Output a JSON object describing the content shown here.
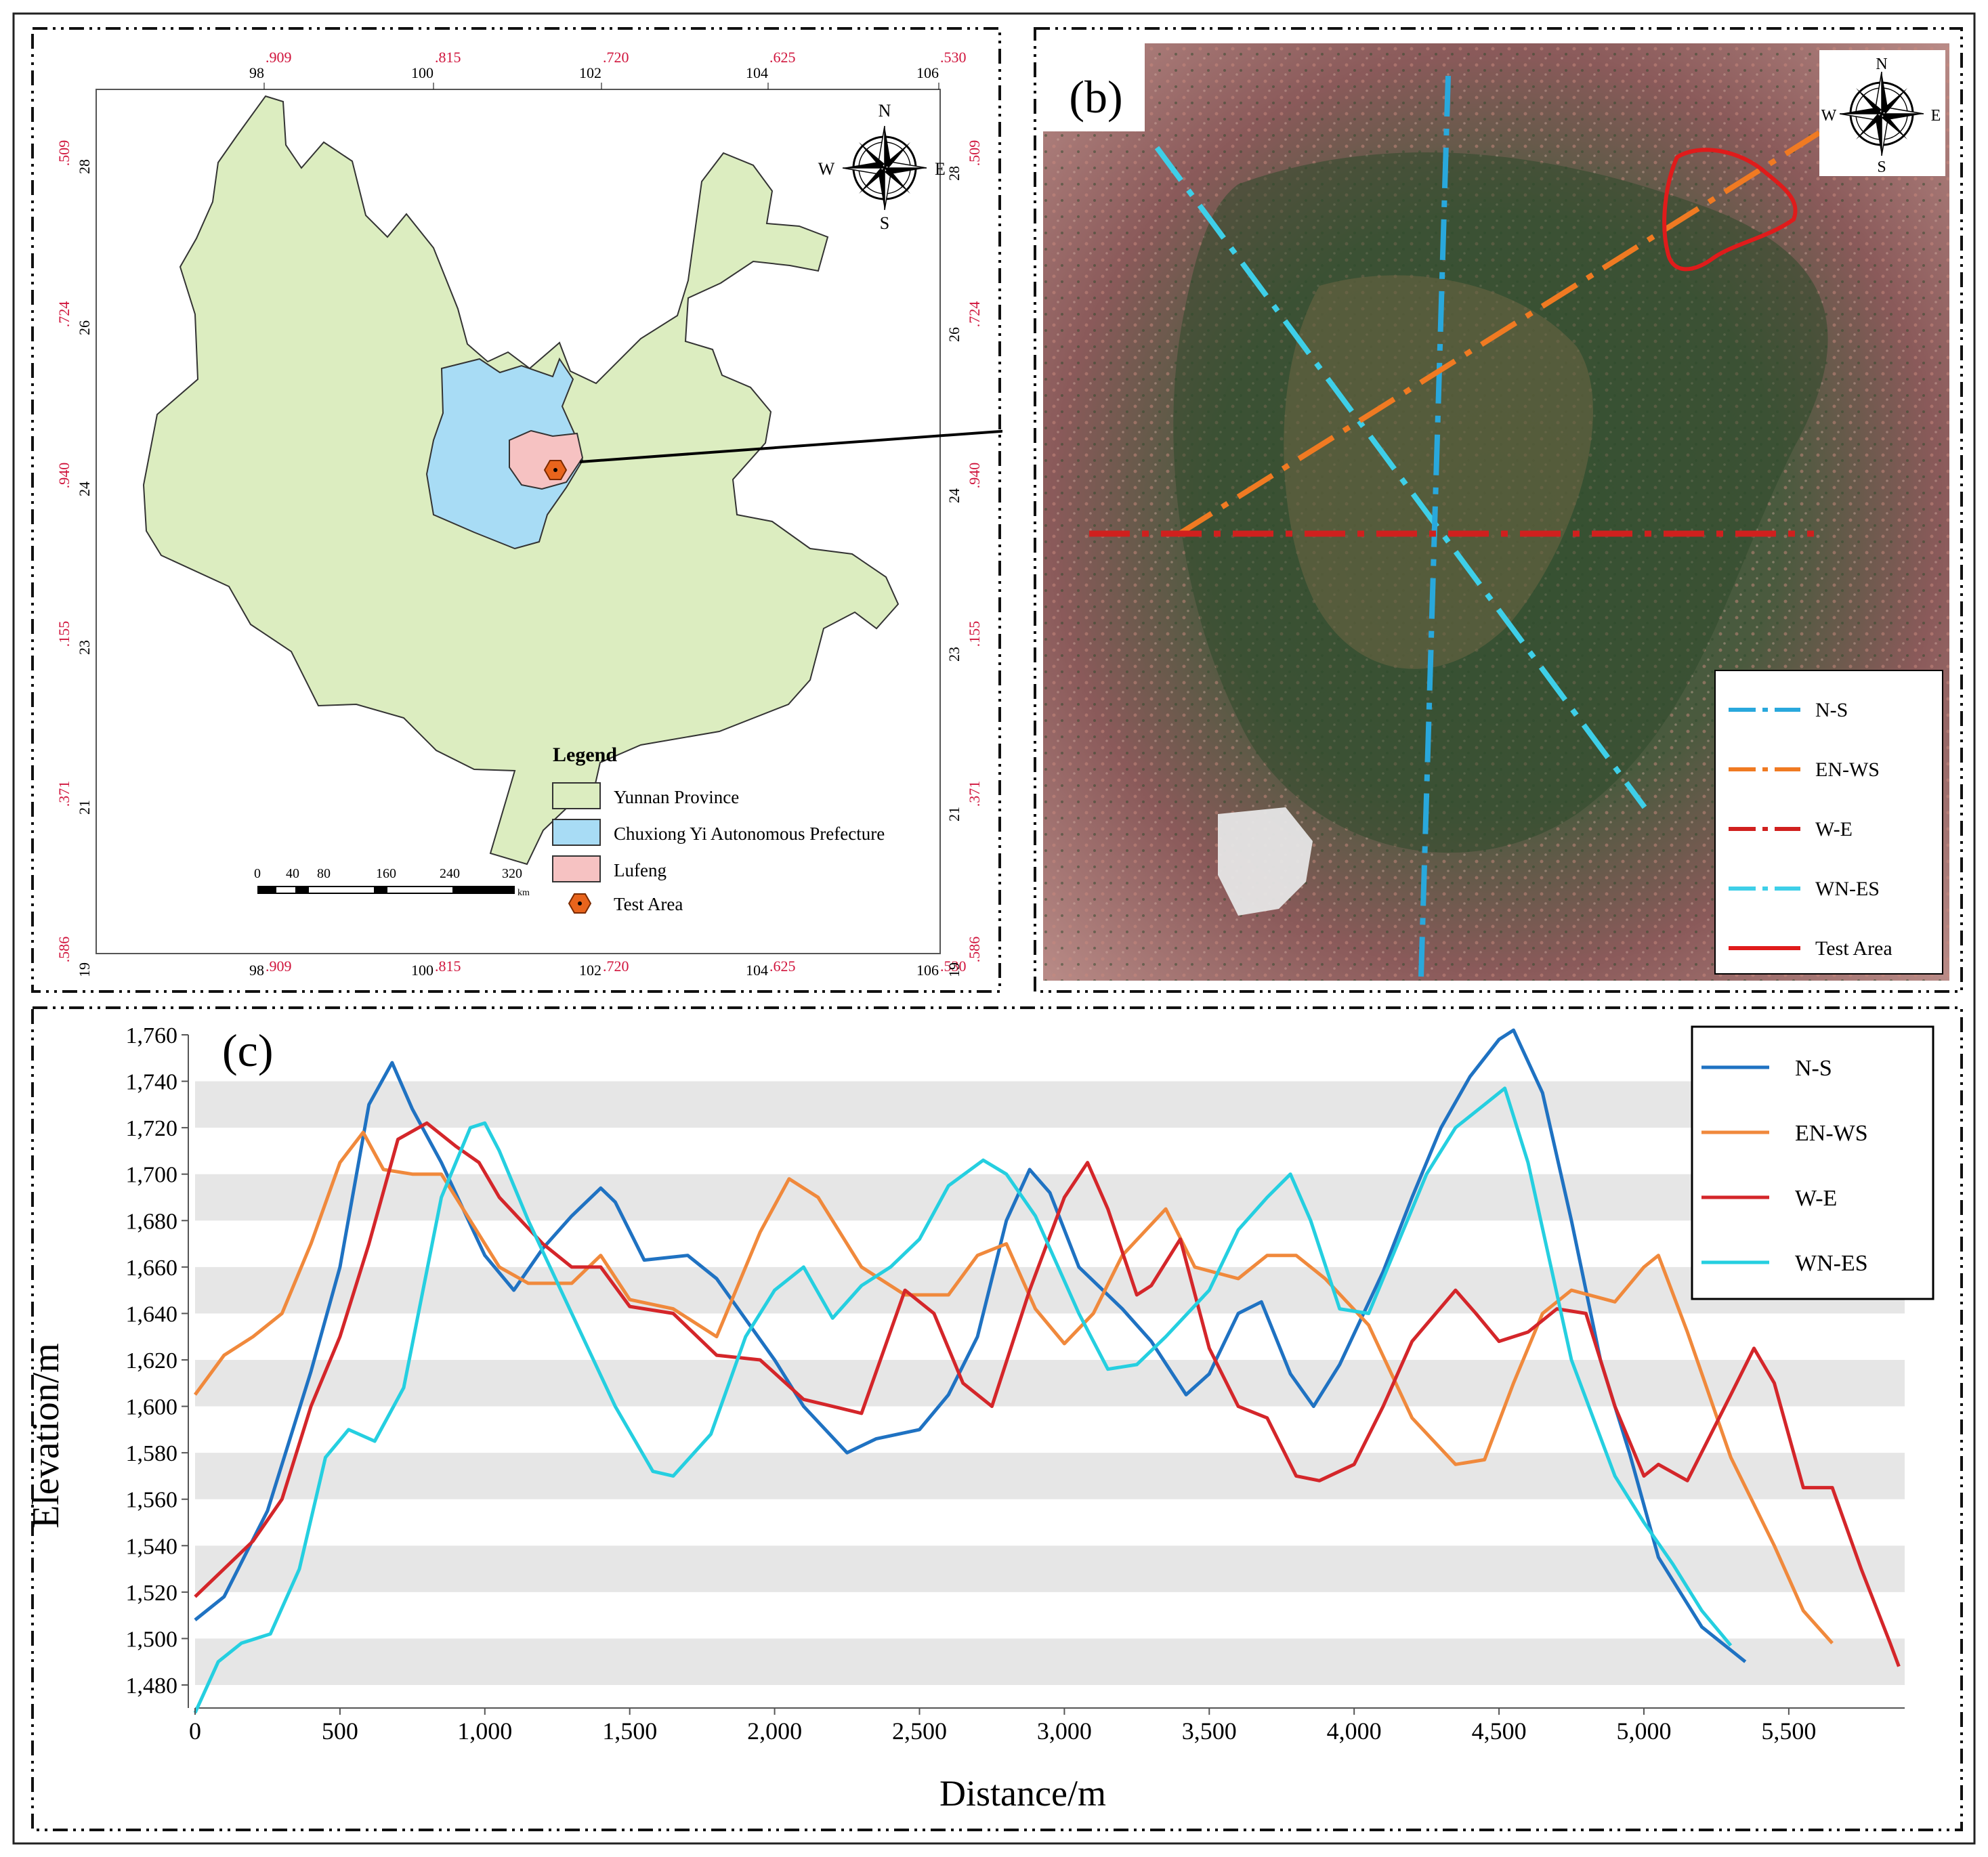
{
  "panel_a": {
    "lon_ticks": [
      {
        "main": "98",
        "sub": ".909"
      },
      {
        "main": "100",
        "sub": ".815"
      },
      {
        "main": "102",
        "sub": ".720"
      },
      {
        "main": "104",
        "sub": ".625"
      },
      {
        "main": "106",
        "sub": ".530"
      }
    ],
    "lat_ticks": [
      {
        "main": "28",
        "sub": ".509"
      },
      {
        "main": "26",
        "sub": ".724"
      },
      {
        "main": "24",
        "sub": ".940"
      },
      {
        "main": "23",
        "sub": ".155"
      },
      {
        "main": "21",
        "sub": ".371"
      },
      {
        "main": "19",
        "sub": ".586"
      }
    ],
    "compass": {
      "n": "N",
      "s": "S",
      "e": "E",
      "w": "W"
    },
    "legend": {
      "title": "Legend",
      "items": [
        {
          "label": "Yunnan Province",
          "color": "#dcedc0"
        },
        {
          "label": "Chuxiong Yi Autonomous Prefecture",
          "color": "#a8dcf5"
        },
        {
          "label": "Lufeng",
          "color": "#f6c2c2"
        },
        {
          "label": "Test Area",
          "color": "#e8641c"
        }
      ]
    },
    "scale_labels": [
      "0",
      "40",
      "80",
      "160",
      "240",
      "320"
    ],
    "scale_unit": "km"
  },
  "panel_b": {
    "tag": "(b)",
    "compass": {
      "n": "N",
      "s": "S",
      "e": "E",
      "w": "W"
    },
    "legend": [
      {
        "label": "N-S",
        "color": "#29a8dc",
        "style": "dashdot"
      },
      {
        "label": "EN-WS",
        "color": "#f07a22",
        "style": "dashdot"
      },
      {
        "label": "W-E",
        "color": "#d0201e",
        "style": "dashdot"
      },
      {
        "label": "WN-ES",
        "color": "#3ecfe8",
        "style": "dashdot"
      },
      {
        "label": "Test Area",
        "color": "#e01b1b",
        "style": "solid"
      }
    ]
  },
  "chart_data": {
    "type": "line",
    "tag": "(c)",
    "xlabel": "Distance/m",
    "ylabel": "Elevation/m",
    "xlim": [
      0,
      5900
    ],
    "ylim": [
      1480,
      1760
    ],
    "xticks": [
      0,
      500,
      1000,
      1500,
      2000,
      2500,
      3000,
      3500,
      4000,
      4500,
      5000,
      5500
    ],
    "xtick_labels": [
      "0",
      "500",
      "1,000",
      "1,500",
      "2,000",
      "2,500",
      "3,000",
      "3,500",
      "4,000",
      "4,500",
      "5,000",
      "5,500"
    ],
    "yticks": [
      1480,
      1500,
      1520,
      1540,
      1560,
      1580,
      1600,
      1620,
      1640,
      1660,
      1680,
      1700,
      1720,
      1740,
      1760
    ],
    "ytick_labels": [
      "1,480",
      "1,500",
      "1,520",
      "1,540",
      "1,560",
      "1,580",
      "1,600",
      "1,620",
      "1,640",
      "1,660",
      "1,680",
      "1,700",
      "1,720",
      "1,740",
      "1,760"
    ],
    "grid": "alternating horizontal bands",
    "legend_position": "top-right",
    "series": [
      {
        "name": "N-S",
        "color": "#1f72c2",
        "x": [
          0,
          100,
          250,
          400,
          500,
          600,
          680,
          750,
          850,
          1000,
          1100,
          1200,
          1300,
          1400,
          1450,
          1550,
          1700,
          1800,
          2000,
          2100,
          2250,
          2350,
          2500,
          2600,
          2700,
          2800,
          2880,
          2950,
          3050,
          3200,
          3300,
          3420,
          3500,
          3600,
          3680,
          3780,
          3860,
          3950,
          4100,
          4200,
          4300,
          4400,
          4500,
          4550,
          4650,
          4750,
          4850,
          4950,
          5050,
          5200,
          5350
        ],
        "y": [
          1508,
          1518,
          1555,
          1615,
          1660,
          1730,
          1748,
          1728,
          1705,
          1665,
          1650,
          1668,
          1682,
          1694,
          1688,
          1663,
          1665,
          1655,
          1620,
          1600,
          1580,
          1586,
          1590,
          1605,
          1630,
          1680,
          1702,
          1692,
          1660,
          1642,
          1628,
          1605,
          1614,
          1640,
          1645,
          1614,
          1600,
          1618,
          1658,
          1690,
          1720,
          1742,
          1758,
          1762,
          1735,
          1680,
          1620,
          1580,
          1535,
          1505,
          1490
        ]
      },
      {
        "name": "EN-WS",
        "color": "#f0893c",
        "x": [
          0,
          100,
          200,
          300,
          400,
          500,
          580,
          650,
          750,
          850,
          950,
          1050,
          1150,
          1300,
          1400,
          1500,
          1650,
          1800,
          1950,
          2050,
          2150,
          2300,
          2450,
          2600,
          2700,
          2800,
          2900,
          3000,
          3100,
          3200,
          3350,
          3450,
          3600,
          3700,
          3800,
          3900,
          4050,
          4200,
          4350,
          4450,
          4550,
          4650,
          4750,
          4900,
          5000,
          5050,
          5150,
          5300,
          5450,
          5550,
          5650
        ],
        "y": [
          1605,
          1622,
          1630,
          1640,
          1670,
          1705,
          1718,
          1702,
          1700,
          1700,
          1680,
          1660,
          1653,
          1653,
          1665,
          1646,
          1642,
          1630,
          1675,
          1698,
          1690,
          1660,
          1648,
          1648,
          1665,
          1670,
          1642,
          1627,
          1640,
          1665,
          1685,
          1660,
          1655,
          1665,
          1665,
          1655,
          1635,
          1595,
          1575,
          1577,
          1610,
          1640,
          1650,
          1645,
          1660,
          1665,
          1632,
          1578,
          1540,
          1512,
          1498
        ]
      },
      {
        "name": "W-E",
        "color": "#d4262a",
        "x": [
          0,
          100,
          200,
          300,
          400,
          500,
          600,
          700,
          800,
          900,
          980,
          1050,
          1200,
          1300,
          1400,
          1500,
          1650,
          1800,
          1950,
          2100,
          2200,
          2300,
          2450,
          2550,
          2650,
          2750,
          2880,
          3000,
          3080,
          3150,
          3250,
          3300,
          3400,
          3500,
          3600,
          3700,
          3800,
          3880,
          4000,
          4100,
          4200,
          4350,
          4420,
          4500,
          4600,
          4700,
          4800,
          4900,
          5000,
          5050,
          5150,
          5300,
          5380,
          5450,
          5550,
          5650,
          5750,
          5850,
          5880
        ],
        "y": [
          1518,
          1530,
          1542,
          1560,
          1600,
          1630,
          1670,
          1715,
          1722,
          1712,
          1705,
          1690,
          1670,
          1660,
          1660,
          1643,
          1640,
          1622,
          1620,
          1603,
          1600,
          1597,
          1650,
          1640,
          1610,
          1600,
          1650,
          1690,
          1705,
          1685,
          1648,
          1652,
          1672,
          1625,
          1600,
          1595,
          1570,
          1568,
          1575,
          1600,
          1628,
          1650,
          1640,
          1628,
          1632,
          1642,
          1640,
          1600,
          1570,
          1575,
          1568,
          1605,
          1625,
          1610,
          1565,
          1565,
          1530,
          1498,
          1488
        ]
      },
      {
        "name": "WN-ES",
        "color": "#25cfe0",
        "x": [
          0,
          80,
          160,
          260,
          360,
          450,
          530,
          620,
          720,
          850,
          950,
          1000,
          1050,
          1150,
          1300,
          1450,
          1580,
          1650,
          1780,
          1900,
          2000,
          2100,
          2200,
          2300,
          2400,
          2500,
          2600,
          2720,
          2800,
          2900,
          3050,
          3150,
          3250,
          3350,
          3500,
          3600,
          3700,
          3780,
          3850,
          3950,
          4050,
          4150,
          4250,
          4350,
          4450,
          4520,
          4600,
          4750,
          4900,
          5000,
          5100,
          5200,
          5300
        ],
        "y": [
          1468,
          1490,
          1498,
          1502,
          1530,
          1578,
          1590,
          1585,
          1608,
          1690,
          1720,
          1722,
          1710,
          1680,
          1640,
          1600,
          1572,
          1570,
          1588,
          1630,
          1650,
          1660,
          1638,
          1652,
          1660,
          1672,
          1695,
          1706,
          1700,
          1682,
          1640,
          1616,
          1618,
          1630,
          1650,
          1676,
          1690,
          1700,
          1680,
          1642,
          1640,
          1670,
          1700,
          1720,
          1730,
          1737,
          1705,
          1620,
          1570,
          1550,
          1532,
          1512,
          1497
        ]
      }
    ]
  }
}
